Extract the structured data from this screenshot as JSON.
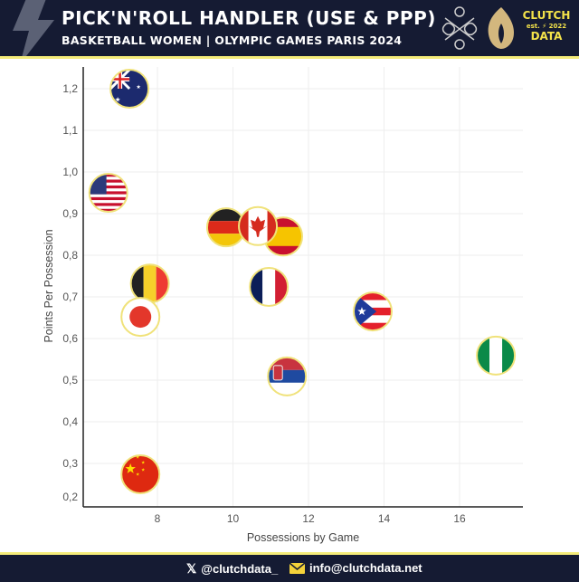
{
  "header": {
    "title": "PICK'N'ROLL HANDLER (USE & PPP)",
    "subtitle": "BASKETBALL WOMEN | OLYMPIC GAMES PARIS 2024",
    "brand_line1": "CLUTCH",
    "brand_line2": "DATA",
    "brand_small": "est. ⚡ 2022"
  },
  "footer": {
    "twitter": "@clutchdata_",
    "email": "info@clutchdata.net"
  },
  "colors": {
    "navy": "#151b33",
    "accent": "#f4ec7a",
    "marker_ring": "#f0e27a"
  },
  "chart_data": {
    "type": "scatter",
    "title": "PICK'N'ROLL HANDLER (USE & PPP)",
    "xlabel": "Possessions by Game",
    "ylabel": "Points Per Possession",
    "xlim": [
      6.05,
      17.6
    ],
    "ylim": [
      0.2,
      1.25
    ],
    "x_ticks": [
      8,
      10,
      12,
      14,
      16
    ],
    "x_tick_labels": [
      "8",
      "10",
      "12",
      "14",
      "16"
    ],
    "y_ticks": [
      0.2,
      0.3,
      0.4,
      0.5,
      0.6,
      0.7,
      0.8,
      0.9,
      1.0,
      1.1,
      1.2
    ],
    "y_tick_labels": [
      "0,2",
      "0,3",
      "0,4",
      "0,5",
      "0,6",
      "0,7",
      "0,8",
      "0,9",
      "1,0",
      "1,1",
      "1,2"
    ],
    "grid": true,
    "marker": "country-flag",
    "points": [
      {
        "team": "AUS",
        "x": 7.26,
        "y": 1.2
      },
      {
        "team": "USA",
        "x": 6.7,
        "y": 0.95
      },
      {
        "team": "GER",
        "x": 9.82,
        "y": 0.867
      },
      {
        "team": "ESP",
        "x": 11.33,
        "y": 0.845
      },
      {
        "team": "CAN",
        "x": 10.66,
        "y": 0.87
      },
      {
        "team": "BEL",
        "x": 7.8,
        "y": 0.732
      },
      {
        "team": "FRA",
        "x": 10.95,
        "y": 0.724
      },
      {
        "team": "JPN",
        "x": 7.55,
        "y": 0.652
      },
      {
        "team": "PUR",
        "x": 13.7,
        "y": 0.665
      },
      {
        "team": "NGR",
        "x": 16.96,
        "y": 0.559
      },
      {
        "team": "SRB",
        "x": 11.43,
        "y": 0.509
      },
      {
        "team": "CHN",
        "x": 7.55,
        "y": 0.274
      }
    ]
  }
}
